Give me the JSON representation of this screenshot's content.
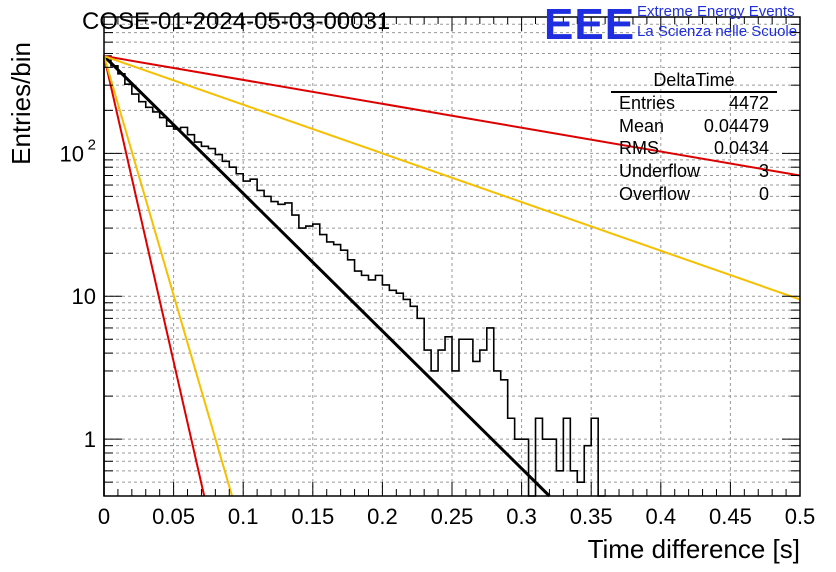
{
  "title": "COSE-01-2024-05-03-00031",
  "logo": {
    "mark": "EEE",
    "line1": "Extreme Energy Events",
    "line2": "La Scienza nelle Scuole",
    "color": "#1f2fe0"
  },
  "stats": {
    "title": "DeltaTime",
    "rows": [
      {
        "key": "Entries",
        "value": "4472"
      },
      {
        "key": "Mean",
        "value": "0.04479"
      },
      {
        "key": "RMS",
        "value": "0.0434"
      },
      {
        "key": "Underflow",
        "value": "3"
      },
      {
        "key": "Overflow",
        "value": "0"
      }
    ]
  },
  "chart_data": {
    "type": "line",
    "xlabel": "Time difference [s]",
    "ylabel": "Entries/bin",
    "xlim": [
      0,
      0.5
    ],
    "ylim": [
      0.4,
      900
    ],
    "yscale": "log",
    "grid": true,
    "x_ticks": [
      "0",
      "0.05",
      "0.1",
      "0.15",
      "0.2",
      "0.25",
      "0.3",
      "0.35",
      "0.4",
      "0.45",
      "0.5"
    ],
    "y_ticks": [
      {
        "value": 1,
        "label": "1"
      },
      {
        "value": 10,
        "label": "10"
      },
      {
        "value": 100,
        "label": "10",
        "exp": "2"
      }
    ],
    "histogram": {
      "bin_width": 0.005,
      "color": "#000000",
      "counts": [
        480,
        410,
        360,
        305,
        260,
        230,
        210,
        195,
        178,
        155,
        148,
        152,
        135,
        120,
        112,
        108,
        98,
        88,
        80,
        72,
        64,
        66,
        55,
        50,
        46,
        44,
        45,
        37,
        30,
        31,
        32,
        27,
        24,
        23,
        21,
        18,
        15,
        14,
        13,
        14,
        12,
        11,
        10.5,
        9.5,
        8.5,
        7,
        4.2,
        3,
        4.2,
        5.2,
        3,
        5,
        5,
        3.5,
        4.2,
        6,
        3,
        2.6,
        1.4,
        1,
        1,
        0.3,
        1.4,
        1,
        1,
        0.6,
        1.4,
        0.6,
        0.5,
        0.9,
        1.4,
        0.3
      ]
    },
    "fits": [
      {
        "color": "#000000",
        "x0": 0,
        "y0": 480,
        "x1": 0.32,
        "y1": 0.4
      },
      {
        "color": "#dd0000",
        "x0": 0,
        "y0": 480,
        "x1": 0.5,
        "y1": 70
      },
      {
        "color": "#f5c000",
        "x0": 0,
        "y0": 480,
        "x1": 0.5,
        "y1": 9.5
      },
      {
        "color": "#dd0000",
        "x0": 0,
        "y0": 480,
        "x1": 0.072,
        "y1": 0.4
      },
      {
        "color": "#f5c000",
        "x0": 0,
        "y0": 480,
        "x1": 0.092,
        "y1": 0.4
      }
    ]
  }
}
